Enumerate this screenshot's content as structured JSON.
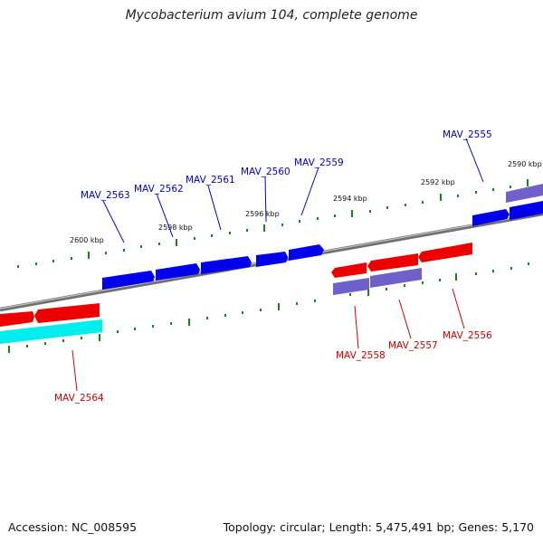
{
  "title": "Mycobacterium avium 104, complete genome",
  "footer": {
    "accession": "Accession: NC_008595",
    "summary": "Topology: circular; Length: 5,475,491 bp; Genes: 5,170"
  },
  "colors": {
    "forward_gene": "#0000ee",
    "reverse_gene": "#ee0000",
    "rna_gene": "#7060cc",
    "pseudo_gene": "#00eeee",
    "backbone": "#808080",
    "tick": "#118811",
    "forward_label": "#0000cc",
    "reverse_label": "#cc0000"
  },
  "kbp_labels": [
    "2600 kbp",
    "2598 kbp",
    "2596 kbp",
    "2594 kbp",
    "2592 kbp",
    "2590 kbp"
  ],
  "forward_labels": [
    "MAV_2563",
    "MAV_2562",
    "MAV_2561",
    "MAV_2560",
    "MAV_2559",
    "MAV_2555"
  ],
  "reverse_labels": [
    "MAV_2564",
    "MAV_2558",
    "MAV_2557",
    "MAV_2556"
  ]
}
